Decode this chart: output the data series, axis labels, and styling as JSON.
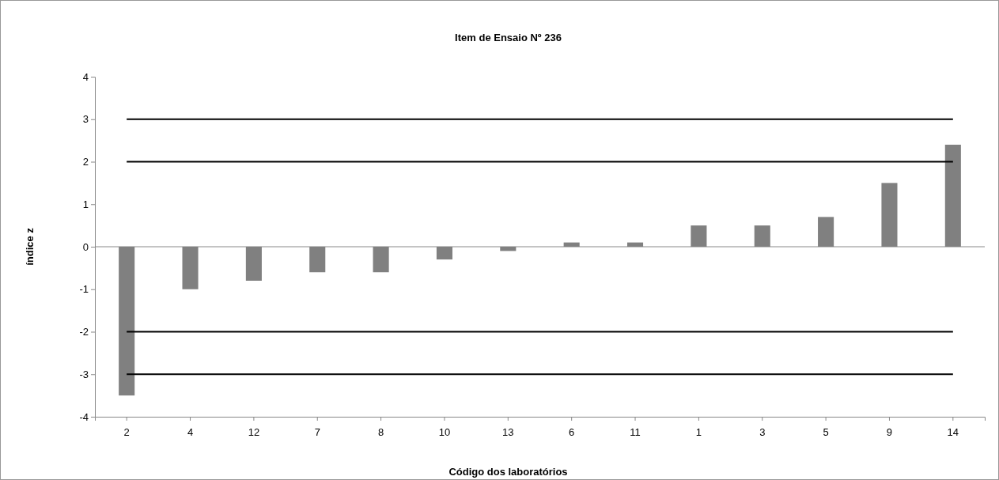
{
  "chart_data": {
    "type": "bar",
    "title": "Item de Ensaio Nº 236",
    "xlabel": "Código dos laboratórios",
    "ylabel": "índice z",
    "categories": [
      "2",
      "4",
      "12",
      "7",
      "8",
      "10",
      "13",
      "6",
      "11",
      "1",
      "3",
      "5",
      "9",
      "14"
    ],
    "values": [
      -3.5,
      -1,
      -0.8,
      -0.6,
      -0.6,
      -0.3,
      -0.1,
      0.1,
      0.1,
      0.5,
      0.5,
      0.7,
      1.5,
      2.4
    ],
    "color": "#808080",
    "ylim": [
      -4,
      4
    ],
    "yticks": [
      -4,
      -3,
      -2,
      -1,
      0,
      1,
      2,
      3,
      4
    ],
    "grid": false,
    "ref_lines": [
      {
        "axis": "y",
        "value": 3,
        "color": "#000000"
      },
      {
        "axis": "y",
        "value": 2,
        "color": "#000000"
      },
      {
        "axis": "y",
        "value": -2,
        "color": "#000000"
      },
      {
        "axis": "y",
        "value": -3,
        "color": "#000000"
      }
    ]
  }
}
